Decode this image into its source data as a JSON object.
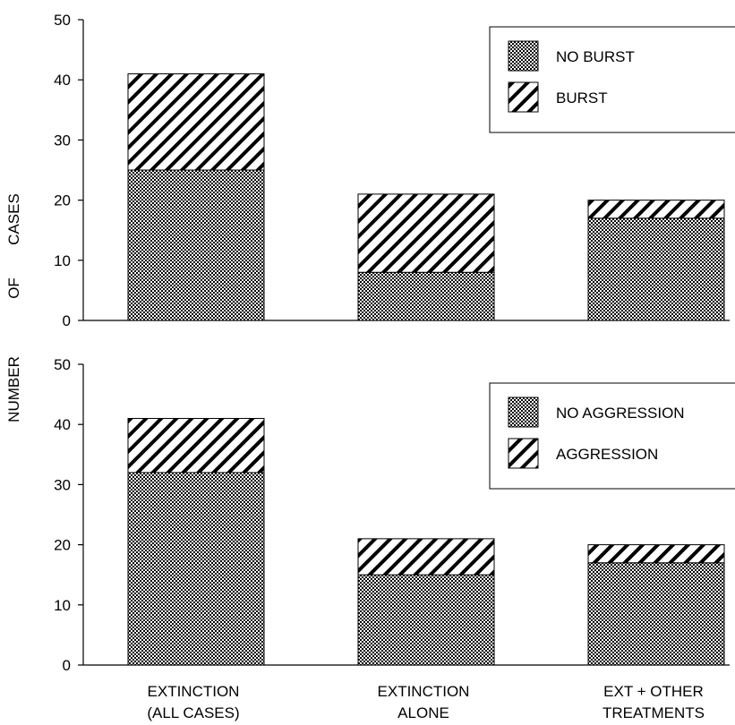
{
  "ylabel_words": [
    "NUMBER",
    "OF",
    "CASES"
  ],
  "chart_data": [
    {
      "type": "bar",
      "stacked": true,
      "categories": [
        "EXTINCTION (ALL CASES)",
        "EXTINCTION ALONE",
        "EXT + OTHER TREATMENTS"
      ],
      "series": [
        {
          "name": "NO BURST",
          "values": [
            25,
            8,
            17
          ],
          "pattern": "dotted-grid"
        },
        {
          "name": "BURST",
          "values": [
            16,
            13,
            3
          ],
          "pattern": "diagonal-hatch"
        }
      ],
      "ylabel": "NUMBER OF CASES",
      "ylim": [
        0,
        50
      ],
      "yticks": [
        0,
        10,
        20,
        30,
        40,
        50
      ],
      "legend_position": "top-right",
      "grid": false
    },
    {
      "type": "bar",
      "stacked": true,
      "categories": [
        "EXTINCTION (ALL CASES)",
        "EXTINCTION ALONE",
        "EXT + OTHER TREATMENTS"
      ],
      "category_lines": [
        [
          "EXTINCTION",
          "(ALL CASES)"
        ],
        [
          "EXTINCTION",
          "ALONE"
        ],
        [
          "EXT + OTHER",
          "TREATMENTS"
        ]
      ],
      "series": [
        {
          "name": "NO AGGRESSION",
          "values": [
            32,
            15,
            17
          ],
          "pattern": "dotted-grid"
        },
        {
          "name": "AGGRESSION",
          "values": [
            9,
            6,
            3
          ],
          "pattern": "diagonal-hatch"
        }
      ],
      "ylabel": "NUMBER OF CASES",
      "ylim": [
        0,
        50
      ],
      "yticks": [
        0,
        10,
        20,
        30,
        40,
        50
      ],
      "legend_position": "top-right",
      "grid": false
    }
  ]
}
